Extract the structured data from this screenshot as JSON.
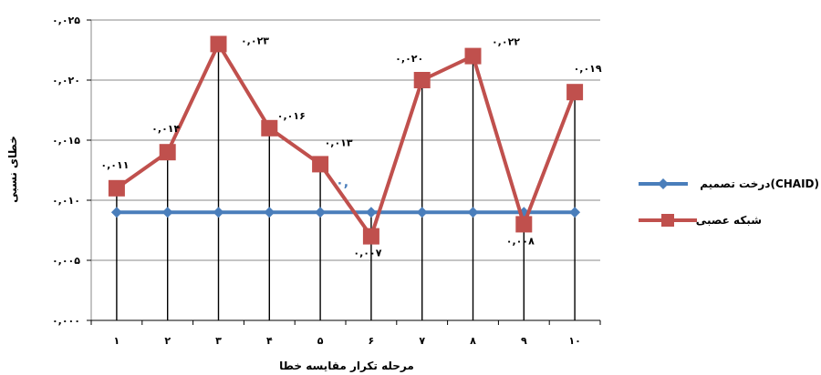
{
  "chart_data": {
    "type": "line",
    "xlabel": "مرحله تکرار مقایسه خطا",
    "ylabel": "خطای نسبی",
    "categories": [
      "۱",
      "۲",
      "۳",
      "۴",
      "۵",
      "۶",
      "۷",
      "۸",
      "۹",
      "۱۰"
    ],
    "y_tick_labels": [
      "۰,۰۰۰",
      "۰,۰۰۵",
      "۰,۰۱۰",
      "۰,۰۱۵",
      "۰,۰۲۰",
      "۰,۰۲۵"
    ],
    "y_ticks": [
      0,
      0.005,
      0.01,
      0.015,
      0.02,
      0.025
    ],
    "ylim": [
      0,
      0.025
    ],
    "grid": "horizontal",
    "legend": "right",
    "series": [
      {
        "name": "درخت تصمیم(CHAID)",
        "color": "#4a7ebb",
        "marker": "diamond",
        "values": [
          0.009,
          0.009,
          0.009,
          0.009,
          0.009,
          0.009,
          0.009,
          0.009,
          0.009,
          0.009
        ],
        "data_labels": [
          "",
          "",
          "",
          "",
          "۰,",
          "",
          "",
          "",
          "",
          ""
        ]
      },
      {
        "name": "شبکه عصبی",
        "color": "#c0504d",
        "marker": "square",
        "values": [
          0.011,
          0.014,
          0.023,
          0.016,
          0.013,
          0.007,
          0.02,
          0.022,
          0.008,
          0.019
        ],
        "data_labels": [
          "۰,۰۱۱",
          "۰,۰۱۴",
          "۰,۰۲۳",
          "۰,۰۱۶",
          "۰,۰۱۳",
          "۰,۰۰۷",
          "۰,۰۲۰",
          "۰,۰۲۲",
          "۰,۰۰۸",
          "۰,۰۱۹"
        ]
      }
    ]
  }
}
